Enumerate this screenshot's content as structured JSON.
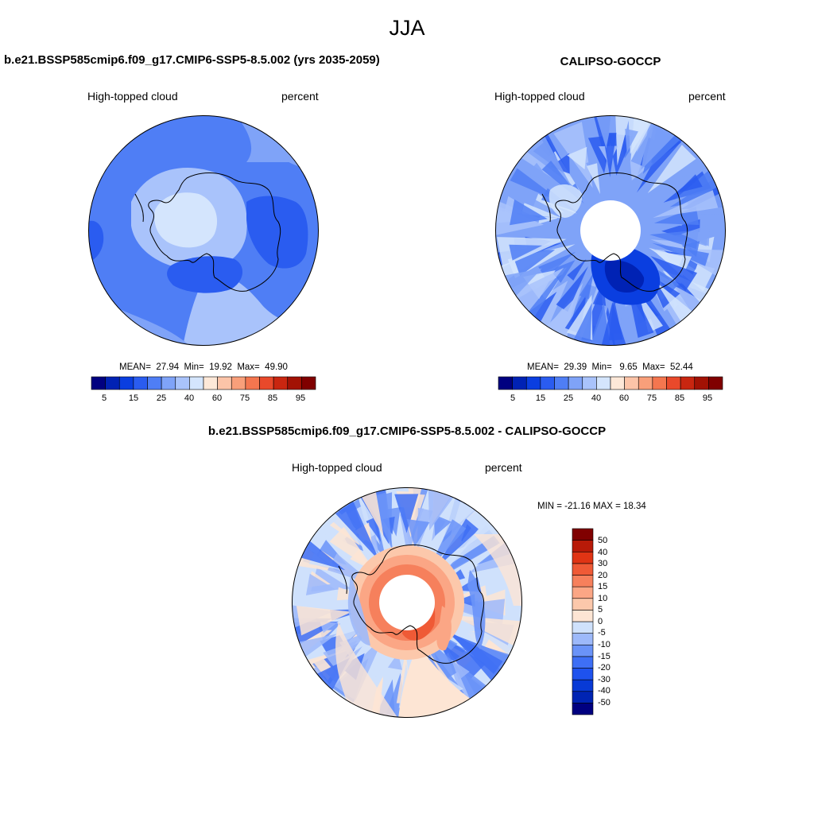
{
  "season": "JJA",
  "palettes": {
    "abs": [
      "#000080",
      "#0022b4",
      "#0a3ee0",
      "#2a5cf0",
      "#4f7ef5",
      "#7fa3f8",
      "#a9c3fb",
      "#d4e5fd",
      "#fde8d8",
      "#fcc4a8",
      "#f99f7a",
      "#f4764f",
      "#e9492b",
      "#c92610",
      "#a21204",
      "#800000"
    ],
    "diff": [
      "#000080",
      "#0024b3",
      "#083ad6",
      "#1e52ee",
      "#3e6ff5",
      "#6a93f8",
      "#9db9fa",
      "#cfe1fc",
      "#fde5d4",
      "#fcc8ab",
      "#fba685",
      "#f6805c",
      "#ef5a36",
      "#e03414",
      "#b81a08",
      "#800000"
    ]
  },
  "panels": {
    "model": {
      "title": "b.e21.BSSP585cmip6.f09_g17.CMIP6-SSP5-8.5.002 (yrs 2035-2059)",
      "variable": "High-topped cloud",
      "units": "percent",
      "mean_label": "MEAN=",
      "mean": "27.94",
      "min_label": "Min=",
      "min": "19.92",
      "max_label": "Max=",
      "max": "49.90",
      "colorbar_labels": [
        "5",
        "15",
        "25",
        "40",
        "60",
        "75",
        "85",
        "95"
      ]
    },
    "obs": {
      "title": "CALIPSO-GOCCP",
      "variable": "High-topped cloud",
      "units": "percent",
      "mean_label": "MEAN=",
      "mean": "29.39",
      "min_label": "Min=",
      "min": "9.65",
      "max_label": "Max=",
      "max": "52.44",
      "colorbar_labels": [
        "5",
        "15",
        "25",
        "40",
        "60",
        "75",
        "85",
        "95"
      ]
    },
    "diff": {
      "title": "b.e21.BSSP585cmip6.f09_g17.CMIP6-SSP5-8.5.002 - CALIPSO-GOCCP",
      "variable": "High-topped cloud",
      "units": "percent",
      "minmax_text": "MIN = -21.16 MAX =  18.34",
      "colorbar_labels": [
        "50",
        "40",
        "30",
        "20",
        "15",
        "10",
        "5",
        "0",
        "-5",
        "-10",
        "-15",
        "-20",
        "-30",
        "-40",
        "-50"
      ]
    }
  }
}
